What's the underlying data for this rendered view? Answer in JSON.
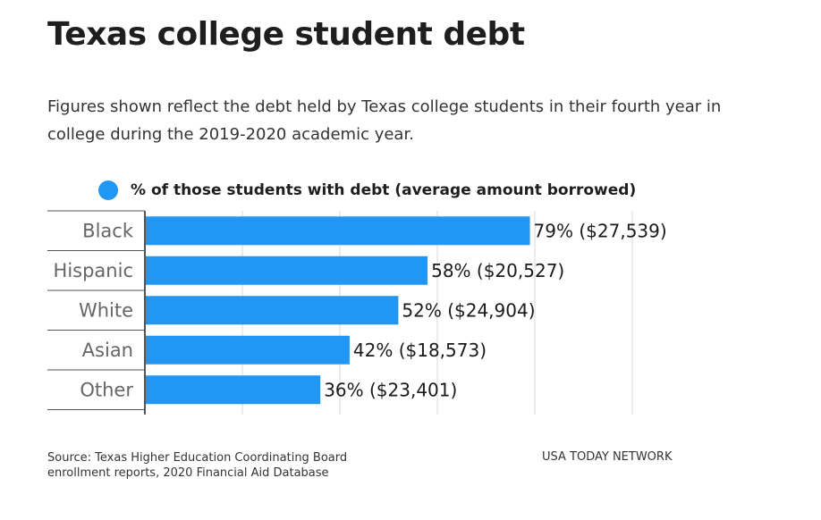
{
  "title": "Texas college student debt",
  "subtitle": "Figures shown reflect the debt held by Texas college students in their fourth year in college during the 2019-2020 academic year.",
  "legend_label": "% of those students with debt (average amount borrowed)",
  "source": "Source: Texas Higher Education Coordinating Board enrollment reports, 2020 Financial Aid Database",
  "brand": "USA TODAY NETWORK",
  "colors": {
    "bar": "#2196f3",
    "grid": "#e6e6e6",
    "axis": "#555555",
    "category_text": "#666666",
    "label_text": "#1a1a1a"
  },
  "chart_data": {
    "type": "bar",
    "orientation": "horizontal",
    "categories": [
      "Black",
      "Hispanic",
      "White",
      "Asian",
      "Other"
    ],
    "series": [
      {
        "name": "% of those students with debt (average amount borrowed)",
        "values": [
          79,
          58,
          52,
          42,
          36
        ],
        "data_labels": [
          "79% ($27,539)",
          "58% ($20,527)",
          "52% ($24,904)",
          "42% ($18,573)",
          "36% ($23,401)"
        ]
      }
    ],
    "xlim": [
      0,
      100
    ],
    "grid": true,
    "legend_position": "top-left"
  }
}
